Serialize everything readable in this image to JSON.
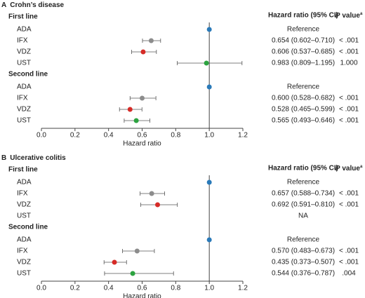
{
  "chart_data": [
    {
      "type": "forest",
      "label": "A",
      "title": "Crohn’s disease",
      "x_label": "Hazard ratio",
      "hr_header": "Hazard ratio (95% CI)",
      "p_header_italic": "P",
      "p_header": "value",
      "p_header_note": "a",
      "xlim": [
        0,
        1.2
      ],
      "xticks": [
        {
          "value": 0,
          "label": "0.0"
        },
        0.2,
        0.4,
        0.6,
        0.8,
        {
          "value": 1,
          "label": "1.0"
        },
        1.2
      ],
      "reference_line": 1,
      "groups": [
        {
          "name": "First line",
          "rows": [
            {
              "category": "ADA",
              "value": 1,
              "color": "#2a7ab9",
              "value_label": "Reference"
            },
            {
              "category": "IFX",
              "value": 0.654,
              "low": 0.602,
              "high": 0.71,
              "color": "#8c8c8c",
              "value_label": "0.654 (0.602–0.710)",
              "p_value": "< .001"
            },
            {
              "category": "VDZ",
              "value": 0.606,
              "low": 0.537,
              "high": 0.685,
              "color": "#d62b27",
              "value_label": "0.606 (0.537–0.685)",
              "p_value": "< .001"
            },
            {
              "category": "UST",
              "value": 0.983,
              "low": 0.809,
              "high": 1.195,
              "color": "#2ca340",
              "value_label": "0.983 (0.809–1.195)",
              "p_value": "1.000"
            }
          ]
        },
        {
          "name": "Second line",
          "rows": [
            {
              "category": "ADA",
              "value": 1,
              "color": "#2a7ab9",
              "value_label": "Reference"
            },
            {
              "category": "IFX",
              "value": 0.6,
              "low": 0.528,
              "high": 0.682,
              "color": "#8c8c8c",
              "value_label": "0.600 (0.528–0.682)",
              "p_value": "< .001"
            },
            {
              "category": "VDZ",
              "value": 0.528,
              "low": 0.465,
              "high": 0.599,
              "color": "#d62b27",
              "value_label": "0.528 (0.465–0.599)",
              "p_value": "< .001"
            },
            {
              "category": "UST",
              "value": 0.565,
              "low": 0.493,
              "high": 0.646,
              "color": "#2ca340",
              "value_label": "0.565 (0.493–0.646)",
              "p_value": "< .001"
            }
          ]
        }
      ]
    },
    {
      "type": "forest",
      "label": "B",
      "title": "Ulcerative colitis",
      "x_label": "Hazard ratio",
      "hr_header": "Hazard ratio (95% CI)",
      "p_header_italic": "P",
      "p_header": "value",
      "p_header_note": "a",
      "xlim": [
        0,
        1.2
      ],
      "xticks": [
        {
          "value": 0,
          "label": "0.0"
        },
        0.2,
        0.4,
        0.6,
        0.8,
        {
          "value": 1,
          "label": "1.0"
        },
        1.2
      ],
      "reference_line": 1,
      "groups": [
        {
          "name": "First line",
          "rows": [
            {
              "category": "ADA",
              "value": 1,
              "color": "#2a7ab9",
              "value_label": "Reference"
            },
            {
              "category": "IFX",
              "value": 0.657,
              "low": 0.588,
              "high": 0.734,
              "color": "#8c8c8c",
              "value_label": "0.657 (0.588–0.734)",
              "p_value": "< .001"
            },
            {
              "category": "VDZ",
              "value": 0.692,
              "low": 0.591,
              "high": 0.81,
              "color": "#d62b27",
              "value_label": "0.692 (0.591–0.810)",
              "p_value": "< .001"
            },
            {
              "category": "UST",
              "value": null,
              "value_label": "NA"
            }
          ]
        },
        {
          "name": "Second line",
          "rows": [
            {
              "category": "ADA",
              "value": 1,
              "color": "#2a7ab9",
              "value_label": "Reference"
            },
            {
              "category": "IFX",
              "value": 0.57,
              "low": 0.483,
              "high": 0.673,
              "color": "#8c8c8c",
              "value_label": "0.570 (0.483–0.673)",
              "p_value": "< .001"
            },
            {
              "category": "VDZ",
              "value": 0.435,
              "low": 0.373,
              "high": 0.507,
              "color": "#d62b27",
              "value_label": "0.435 (0.373–0.507)",
              "p_value": "< .001"
            },
            {
              "category": "UST",
              "value": 0.544,
              "low": 0.376,
              "high": 0.787,
              "color": "#2ca340",
              "value_label": "0.544 (0.376–0.787)",
              "p_value": ".004"
            }
          ]
        }
      ]
    }
  ]
}
